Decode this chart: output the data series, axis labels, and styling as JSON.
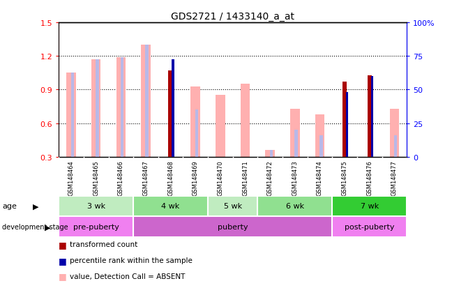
{
  "title": "GDS2721 / 1433140_a_at",
  "samples": [
    "GSM148464",
    "GSM148465",
    "GSM148466",
    "GSM148467",
    "GSM148468",
    "GSM148469",
    "GSM148470",
    "GSM148471",
    "GSM148472",
    "GSM148473",
    "GSM148474",
    "GSM148475",
    "GSM148476",
    "GSM148477"
  ],
  "value_pink": [
    1.05,
    1.17,
    1.19,
    1.3,
    null,
    0.93,
    0.85,
    0.95,
    0.36,
    0.73,
    0.68,
    null,
    null,
    0.73
  ],
  "rank_blue_absent": [
    1.05,
    1.17,
    1.19,
    1.3,
    null,
    0.72,
    null,
    null,
    0.36,
    0.54,
    0.49,
    null,
    null,
    0.49
  ],
  "transformed_count_red": [
    null,
    null,
    null,
    null,
    1.07,
    null,
    null,
    null,
    null,
    null,
    null,
    0.97,
    1.03,
    null
  ],
  "percentile_rank_blue": [
    null,
    null,
    null,
    null,
    1.17,
    null,
    null,
    null,
    null,
    null,
    null,
    0.88,
    1.02,
    null
  ],
  "ylim": [
    0.3,
    1.5
  ],
  "yticks_left": [
    0.3,
    0.6,
    0.9,
    1.2,
    1.5
  ],
  "yticks_right": [
    0,
    25,
    50,
    75,
    100
  ],
  "age_groups": [
    {
      "label": "3 wk",
      "start": 0,
      "end": 3,
      "color": "#c0ecc0"
    },
    {
      "label": "4 wk",
      "start": 3,
      "end": 6,
      "color": "#90e090"
    },
    {
      "label": "5 wk",
      "start": 6,
      "end": 8,
      "color": "#c0ecc0"
    },
    {
      "label": "6 wk",
      "start": 8,
      "end": 11,
      "color": "#90e090"
    },
    {
      "label": "7 wk",
      "start": 11,
      "end": 14,
      "color": "#33cc33"
    }
  ],
  "dev_groups": [
    {
      "label": "pre-puberty",
      "start": 0,
      "end": 3,
      "color": "#f080f0"
    },
    {
      "label": "puberty",
      "start": 3,
      "end": 11,
      "color": "#cc66cc"
    },
    {
      "label": "post-puberty",
      "start": 11,
      "end": 14,
      "color": "#f080f0"
    }
  ],
  "color_red": "#aa0000",
  "color_blue": "#0000aa",
  "color_pink": "#ffb0b0",
  "color_blue_absent": "#b8b8e8",
  "background_color": "#ffffff",
  "xlabel_bg": "#cccccc",
  "legend_items": [
    {
      "color": "#aa0000",
      "label": "transformed count"
    },
    {
      "color": "#0000aa",
      "label": "percentile rank within the sample"
    },
    {
      "color": "#ffb0b0",
      "label": "value, Detection Call = ABSENT"
    },
    {
      "color": "#b8b8e8",
      "label": "rank, Detection Call = ABSENT"
    }
  ]
}
